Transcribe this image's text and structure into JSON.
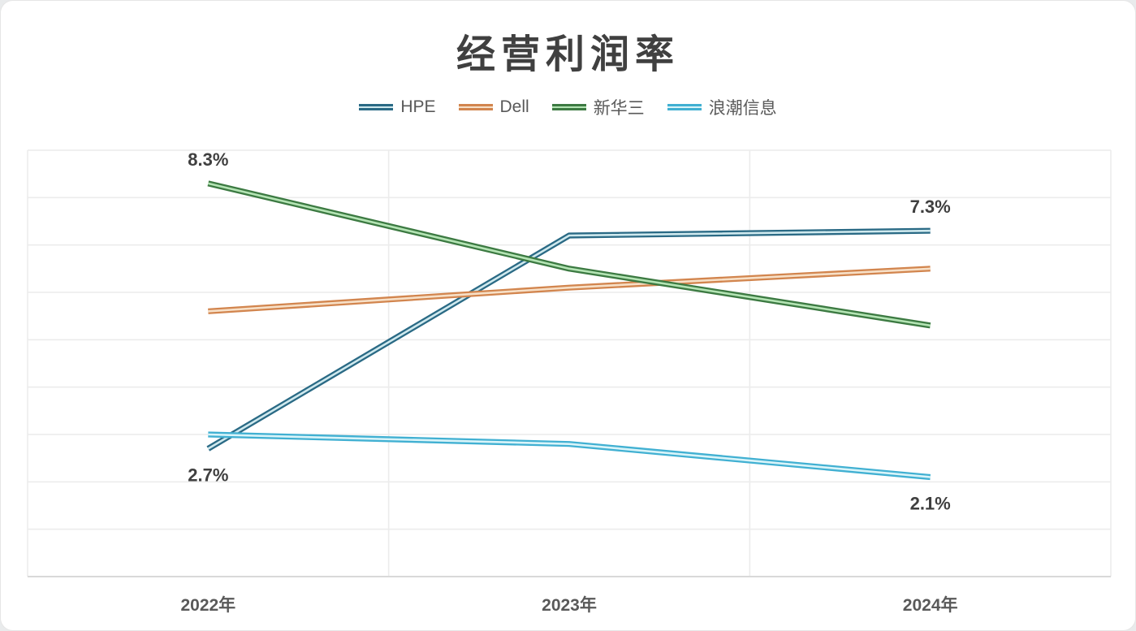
{
  "title": "经营利润率",
  "chart_data": {
    "type": "line",
    "title": "经营利润率",
    "categories": [
      "2022年",
      "2023年",
      "2024年"
    ],
    "series": [
      {
        "name": "HPE",
        "color": "#2a6a85",
        "core_color": "#cfe9ee",
        "values": [
          2.7,
          7.2,
          7.3
        ]
      },
      {
        "name": "Dell",
        "color": "#d2854e",
        "core_color": "#f7e0c7",
        "values": [
          5.6,
          6.1,
          6.5
        ]
      },
      {
        "name": "新华三",
        "color": "#3c7a42",
        "core_color": "#b4e4b4",
        "values": [
          8.3,
          6.5,
          5.3
        ]
      },
      {
        "name": "浪潮信息",
        "color": "#41b0d2",
        "core_color": "#d9f4f9",
        "values": [
          3.0,
          2.8,
          2.1
        ]
      }
    ],
    "data_labels": [
      {
        "text": "8.3%",
        "series": 2,
        "point": 0,
        "placement": "above"
      },
      {
        "text": "2.7%",
        "series": 0,
        "point": 0,
        "placement": "below"
      },
      {
        "text": "7.3%",
        "series": 0,
        "point": 2,
        "placement": "above"
      },
      {
        "text": "2.1%",
        "series": 3,
        "point": 2,
        "placement": "below"
      }
    ],
    "ylim": [
      0,
      9
    ],
    "y_gridline_interval": 1,
    "x_dividers": true,
    "grid": true,
    "legend_position": "top",
    "xlabel": "",
    "ylabel": ""
  },
  "colors": {
    "title_text": "#404040",
    "axis_text": "#595959",
    "data_label_text": "#3f3f3f",
    "gridline": "#ececec",
    "axis_line": "#d9d9d9",
    "background": "#ffffff"
  }
}
